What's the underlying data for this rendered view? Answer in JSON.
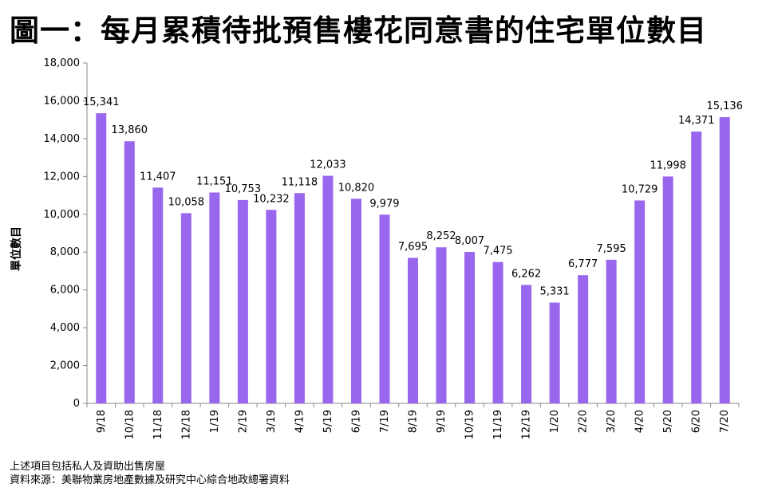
{
  "page": {
    "title": "圖一：每月累積待批預售樓花同意書的住宅單位數目",
    "note_line1": "上述項目包括私人及資助出售房屋",
    "note_line2": "資料來源：美聯物業房地產數據及研究中心綜合地政總署資料"
  },
  "chart_data": {
    "type": "bar",
    "title": "圖一：每月累積待批預售樓花同意書的住宅單位數目",
    "xlabel": "",
    "ylabel": "單位數目",
    "ylim": [
      0,
      18000
    ],
    "yticks": [
      0,
      2000,
      4000,
      6000,
      8000,
      10000,
      12000,
      14000,
      16000,
      18000
    ],
    "grid": false,
    "legend": "none",
    "bar_color": "#9966ee",
    "categories": [
      "9/18",
      "10/18",
      "11/18",
      "12/18",
      "1/19",
      "2/19",
      "3/19",
      "4/19",
      "5/19",
      "6/19",
      "7/19",
      "8/19",
      "9/19",
      "10/19",
      "11/19",
      "12/19",
      "1/20",
      "2/20",
      "3/20",
      "4/20",
      "5/20",
      "6/20",
      "7/20"
    ],
    "values": [
      15341,
      13860,
      11407,
      10058,
      11151,
      10753,
      10232,
      11118,
      12033,
      10820,
      9979,
      7695,
      8252,
      8007,
      7475,
      6262,
      5331,
      6777,
      7595,
      10729,
      11998,
      14371,
      15136
    ]
  }
}
